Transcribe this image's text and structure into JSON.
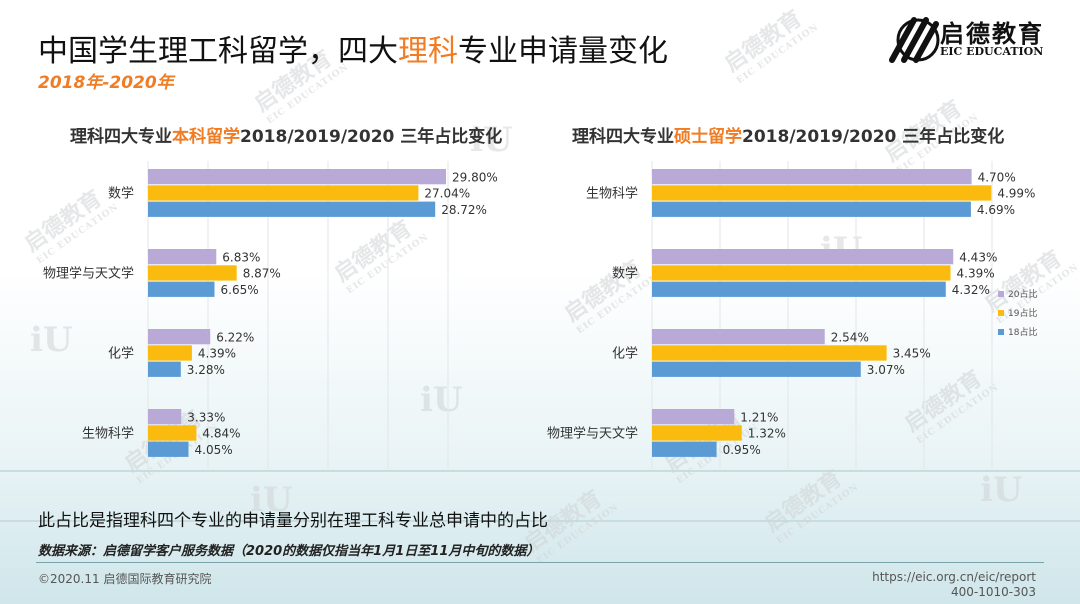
{
  "header": {
    "title_pre": "中国学生理工科留学，四大",
    "title_hl": "理科",
    "title_post": "专业申请量变化",
    "subtitle": "2018年-2020年"
  },
  "logo": {
    "cn": "启德教育",
    "en": "EIC EDUCATION"
  },
  "watermark": {
    "cn": "启德教育",
    "en": "EIC EDUCATION",
    "mark": "iU"
  },
  "colors": {
    "s20": "#b8a9d6",
    "s19": "#fbbb0e",
    "s18": "#5b9bd5",
    "accent": "#f07c24"
  },
  "chart_data": [
    {
      "type": "bar",
      "orientation": "horizontal",
      "title_pre": "理科四大专业",
      "title_hl": "本科留学",
      "title_post": "2018/2019/2020 三年占比变化",
      "categories": [
        "数学",
        "物理学与天文学",
        "化学",
        "生物科学"
      ],
      "xlim": [
        0,
        30
      ],
      "series": [
        {
          "name": "20占比",
          "color": "#b8a9d6",
          "values": [
            29.8,
            6.83,
            6.22,
            3.33
          ],
          "labels": [
            "29.80%",
            "6.83%",
            "6.22%",
            "3.33%"
          ]
        },
        {
          "name": "19占比",
          "color": "#fbbb0e",
          "values": [
            27.04,
            8.87,
            4.39,
            4.84
          ],
          "labels": [
            "27.04%",
            "8.87%",
            "4.39%",
            "4.84%"
          ]
        },
        {
          "name": "18占比",
          "color": "#5b9bd5",
          "values": [
            28.72,
            6.65,
            3.28,
            4.05
          ],
          "labels": [
            "28.72%",
            "6.65%",
            "3.28%",
            "4.05%"
          ]
        }
      ],
      "grid": true,
      "legend": "none"
    },
    {
      "type": "bar",
      "orientation": "horizontal",
      "title_pre": "理科四大专业",
      "title_hl": "硕士留学",
      "title_post": "2018/2019/2020 三年占比变化",
      "categories": [
        "生物科学",
        "数学",
        "化学",
        "物理学与天文学"
      ],
      "xlim": [
        0,
        5
      ],
      "series": [
        {
          "name": "20占比",
          "color": "#b8a9d6",
          "values": [
            4.7,
            4.43,
            2.54,
            1.21
          ],
          "labels": [
            "4.70%",
            "4.43%",
            "2.54%",
            "1.21%"
          ]
        },
        {
          "name": "19占比",
          "color": "#fbbb0e",
          "values": [
            4.99,
            4.39,
            3.45,
            1.32
          ],
          "labels": [
            "4.99%",
            "4.39%",
            "3.45%",
            "1.32%"
          ]
        },
        {
          "name": "18占比",
          "color": "#5b9bd5",
          "values": [
            4.69,
            4.32,
            3.07,
            0.95
          ],
          "labels": [
            "4.69%",
            "4.32%",
            "3.07%",
            "0.95%"
          ]
        }
      ],
      "grid": true,
      "legend": "right"
    }
  ],
  "footer": {
    "note": "此占比是指理科四个专业的申请量分别在理工科专业总申请中的占比",
    "source": "数据来源：启德留学客户服务数据（2020的数据仅指当年1月1日至11月中旬的数据）",
    "copyright": "©2020.11 启德国际教育研究院",
    "url": "https://eic.org.cn/eic/report",
    "phone": "400-1010-303"
  }
}
